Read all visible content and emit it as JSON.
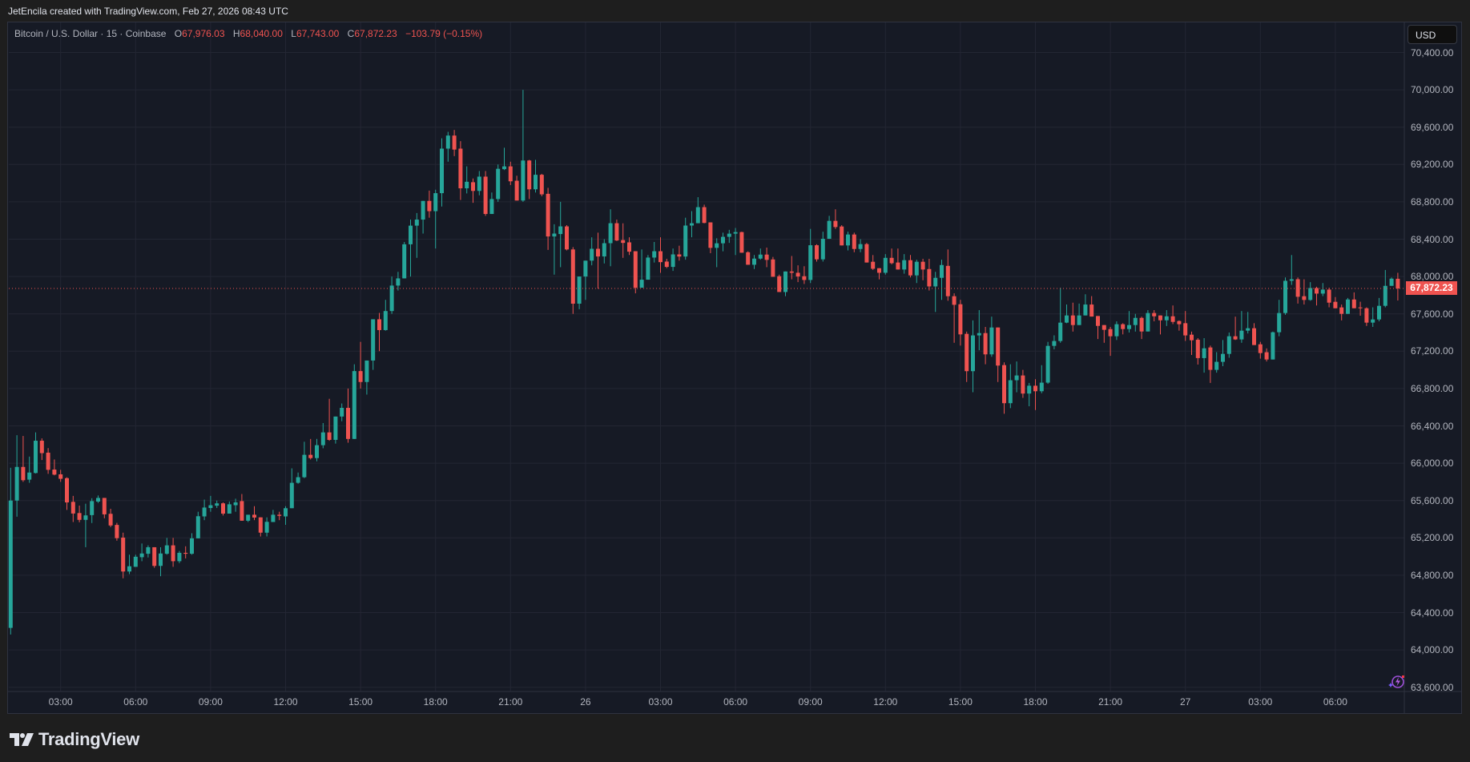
{
  "header": {
    "attribution": "JetEncila created with TradingView.com, Feb 27, 2026 08:43 UTC"
  },
  "legend": {
    "symbol": "Bitcoin / U.S. Dollar · 15 · Coinbase",
    "open_label": "O",
    "open": "67,976.03",
    "high_label": "H",
    "high": "68,040.00",
    "low_label": "L",
    "low": "67,743.00",
    "close_label": "C",
    "close": "67,872.23",
    "change": "−103.79 (−0.15%)"
  },
  "price_axis": {
    "currency_button": "USD",
    "last_price": "67,872.23",
    "labels": [
      "70,400.00",
      "70,000.00",
      "69,600.00",
      "69,200.00",
      "68,800.00",
      "68,400.00",
      "68,000.00",
      "67,600.00",
      "67,200.00",
      "66,800.00",
      "66,400.00",
      "66,000.00",
      "65,600.00",
      "65,200.00",
      "64,800.00",
      "64,400.00",
      "64,000.00",
      "63,600.00"
    ]
  },
  "time_axis": {
    "labels": [
      "03:00",
      "06:00",
      "09:00",
      "12:00",
      "15:00",
      "18:00",
      "21:00",
      "26",
      "03:00",
      "06:00",
      "09:00",
      "12:00",
      "15:00",
      "18:00",
      "21:00",
      "27",
      "03:00",
      "06:00"
    ]
  },
  "footer": {
    "logo_text": "TradingView"
  },
  "icons": {
    "logo": "tradingview-logo-icon",
    "corner": "lightning-sparkle-icon"
  },
  "colors": {
    "up": "#26a69a",
    "down": "#ef5350",
    "background": "#161a25",
    "grid": "#232633",
    "last_price": "#ef5350",
    "corner_icon": "#9c4fd6"
  },
  "chart_data": {
    "type": "candlestick",
    "title": "Bitcoin / U.S. Dollar · 15 · Coinbase",
    "interval": "15",
    "ylim": [
      63600,
      70400
    ],
    "y_ticks": [
      70400,
      70000,
      69600,
      69200,
      68800,
      68400,
      68000,
      67600,
      67200,
      66800,
      66400,
      66000,
      65600,
      65200,
      64800,
      64400,
      64000,
      63600
    ],
    "x_tick_labels": [
      "03:00",
      "06:00",
      "09:00",
      "12:00",
      "15:00",
      "18:00",
      "21:00",
      "26",
      "03:00",
      "06:00",
      "09:00",
      "12:00",
      "15:00",
      "18:00",
      "21:00",
      "27",
      "03:00",
      "06:00"
    ],
    "grid": true,
    "last_price": 67872.23,
    "ohlc": [
      [
        64236,
        65952,
        64165,
        65600
      ],
      [
        65600,
        66300,
        65427,
        65960
      ],
      [
        65960,
        66292,
        65800,
        65818
      ],
      [
        65824,
        66071,
        65790,
        65900
      ],
      [
        65895,
        66330,
        65890,
        66241
      ],
      [
        66241,
        66266,
        66034,
        66108
      ],
      [
        66113,
        66162,
        65886,
        65929
      ],
      [
        65932,
        66040,
        65870,
        65878
      ],
      [
        65881,
        65929,
        65800,
        65833
      ],
      [
        65840,
        65850,
        65500,
        65580
      ],
      [
        65586,
        65650,
        65370,
        65461
      ],
      [
        65466,
        65546,
        65367,
        65393
      ],
      [
        65393,
        65566,
        65100,
        65441
      ],
      [
        65444,
        65625,
        65359,
        65594
      ],
      [
        65589,
        65654,
        65575,
        65628
      ],
      [
        65628,
        65628,
        65410,
        65452
      ],
      [
        65458,
        65512,
        65315,
        65333
      ],
      [
        65339,
        65361,
        65170,
        65197
      ],
      [
        65203,
        65256,
        64767,
        64840
      ],
      [
        64840,
        65020,
        64812,
        64896
      ],
      [
        64890,
        65020,
        64890,
        64998
      ],
      [
        64993,
        65140,
        64950,
        65033
      ],
      [
        65030,
        65120,
        64990,
        65100
      ],
      [
        65100,
        65100,
        64880,
        64900
      ],
      [
        64900,
        65100,
        64790,
        65033
      ],
      [
        65030,
        65200,
        65020,
        65120
      ],
      [
        65120,
        65200,
        64890,
        64950
      ],
      [
        64950,
        65060,
        64930,
        65040
      ],
      [
        65040,
        65110,
        64980,
        65030
      ],
      [
        65030,
        65250,
        65020,
        65195
      ],
      [
        65195,
        65480,
        65195,
        65432
      ],
      [
        65430,
        65610,
        65390,
        65525
      ],
      [
        65520,
        65650,
        65480,
        65550
      ],
      [
        65545,
        65600,
        65520,
        65570
      ],
      [
        65570,
        65580,
        65440,
        65460
      ],
      [
        65460,
        65590,
        65460,
        65560
      ],
      [
        65550,
        65620,
        65480,
        65580
      ],
      [
        65594,
        65670,
        65384,
        65384
      ],
      [
        65384,
        65448,
        65370,
        65448
      ],
      [
        65448,
        65540,
        65390,
        65418
      ],
      [
        65420,
        65420,
        65215,
        65256
      ],
      [
        65256,
        65420,
        65215,
        65372
      ],
      [
        65370,
        65500,
        65370,
        65448
      ],
      [
        65448,
        65480,
        65390,
        65436
      ],
      [
        65430,
        65540,
        65340,
        65518
      ],
      [
        65518,
        65945,
        65518,
        65790
      ],
      [
        65790,
        65900,
        65780,
        65850
      ],
      [
        65850,
        66230,
        65840,
        66090
      ],
      [
        66090,
        66260,
        66040,
        66055
      ],
      [
        66055,
        66260,
        66020,
        66193
      ],
      [
        66193,
        66430,
        66160,
        66330
      ],
      [
        66330,
        66690,
        66240,
        66250
      ],
      [
        66250,
        66500,
        66210,
        66500
      ],
      [
        66500,
        66640,
        66450,
        66593
      ],
      [
        66593,
        66800,
        66220,
        66260
      ],
      [
        66260,
        67060,
        66260,
        66987
      ],
      [
        66987,
        67300,
        66800,
        66870
      ],
      [
        66870,
        67100,
        66735,
        67100
      ],
      [
        67100,
        67542,
        67000,
        67542
      ],
      [
        67542,
        67610,
        67200,
        67426
      ],
      [
        67426,
        67750,
        67420,
        67630
      ],
      [
        67630,
        68000,
        67600,
        67903
      ],
      [
        67903,
        68050,
        67850,
        67980
      ],
      [
        67980,
        68370,
        67980,
        68345
      ],
      [
        68345,
        68610,
        68000,
        68545
      ],
      [
        68545,
        68680,
        68200,
        68610
      ],
      [
        68610,
        68810,
        68460,
        68810
      ],
      [
        68810,
        68920,
        68630,
        68700
      ],
      [
        68700,
        68930,
        68300,
        68893
      ],
      [
        68893,
        69480,
        68750,
        69370
      ],
      [
        69370,
        69550,
        69230,
        69510
      ],
      [
        69510,
        69570,
        69290,
        69360
      ],
      [
        69370,
        69450,
        68820,
        68945
      ],
      [
        68945,
        69180,
        68890,
        69015
      ],
      [
        69010,
        69050,
        68790,
        68917
      ],
      [
        68917,
        69130,
        68870,
        69070
      ],
      [
        69070,
        69130,
        68650,
        68670
      ],
      [
        68670,
        68900,
        68670,
        68830
      ],
      [
        68830,
        69200,
        68800,
        69154
      ],
      [
        69150,
        69380,
        69140,
        69180
      ],
      [
        69180,
        69230,
        68980,
        69020
      ],
      [
        69026,
        69080,
        68814,
        68814
      ],
      [
        68814,
        70000,
        68800,
        69243
      ],
      [
        69243,
        69250,
        68830,
        68934
      ],
      [
        68934,
        69250,
        68900,
        69090
      ],
      [
        69090,
        69100,
        68860,
        68880
      ],
      [
        68886,
        68950,
        68285,
        68429
      ],
      [
        68429,
        68560,
        68020,
        68460
      ],
      [
        68455,
        68800,
        68100,
        68537
      ],
      [
        68537,
        68550,
        68280,
        68290
      ],
      [
        68290,
        68315,
        67600,
        67709
      ],
      [
        67709,
        68000,
        67650,
        68000
      ],
      [
        68000,
        68170,
        67750,
        68170
      ],
      [
        68170,
        68420,
        68120,
        68297
      ],
      [
        68297,
        68470,
        67870,
        68215
      ],
      [
        68215,
        68400,
        68140,
        68357
      ],
      [
        68357,
        68720,
        68110,
        68571
      ],
      [
        68571,
        68610,
        68380,
        68386
      ],
      [
        68390,
        68570,
        68200,
        68360
      ],
      [
        68366,
        68420,
        68230,
        68266
      ],
      [
        68271,
        68271,
        67820,
        67880
      ],
      [
        67880,
        68290,
        67880,
        67966
      ],
      [
        67966,
        68230,
        67966,
        68203
      ],
      [
        68203,
        68370,
        68150,
        68271
      ],
      [
        68271,
        68420,
        68040,
        68154
      ],
      [
        68160,
        68190,
        68090,
        68103
      ],
      [
        68103,
        68300,
        68060,
        68237
      ],
      [
        68237,
        68330,
        68170,
        68214
      ],
      [
        68214,
        68630,
        68180,
        68546
      ],
      [
        68546,
        68700,
        68420,
        68571
      ],
      [
        68571,
        68850,
        68571,
        68743
      ],
      [
        68743,
        68770,
        68570,
        68574
      ],
      [
        68580,
        68580,
        68250,
        68307
      ],
      [
        68307,
        68410,
        68100,
        68356
      ],
      [
        68356,
        68470,
        68270,
        68425
      ],
      [
        68425,
        68500,
        68360,
        68459
      ],
      [
        68459,
        68520,
        68230,
        68476
      ],
      [
        68476,
        68480,
        68255,
        68255
      ],
      [
        68260,
        68270,
        68126,
        68126
      ],
      [
        68126,
        68230,
        68080,
        68192
      ],
      [
        68192,
        68300,
        68180,
        68235
      ],
      [
        68235,
        68310,
        68100,
        68178
      ],
      [
        68183,
        68210,
        67997,
        67997
      ],
      [
        68003,
        68020,
        67834,
        67834
      ],
      [
        67834,
        68054,
        67790,
        68054
      ],
      [
        68054,
        68220,
        67970,
        68040
      ],
      [
        68040,
        68120,
        67940,
        68000
      ],
      [
        68003,
        68110,
        67920,
        67963
      ],
      [
        67963,
        68510,
        67930,
        68335
      ],
      [
        68335,
        68345,
        68160,
        68184
      ],
      [
        68184,
        68480,
        68160,
        68404
      ],
      [
        68404,
        68650,
        68404,
        68596
      ],
      [
        68596,
        68720,
        68510,
        68530
      ],
      [
        68536,
        68550,
        68333,
        68333
      ],
      [
        68333,
        68480,
        68280,
        68450
      ],
      [
        68450,
        68470,
        68260,
        68295
      ],
      [
        68295,
        68400,
        68260,
        68347
      ],
      [
        68347,
        68360,
        68150,
        68150
      ],
      [
        68158,
        68230,
        68070,
        68083
      ],
      [
        68089,
        68090,
        67970,
        68040
      ],
      [
        68040,
        68240,
        68020,
        68200
      ],
      [
        68200,
        68300,
        68130,
        68143
      ],
      [
        68150,
        68300,
        68075,
        68075
      ],
      [
        68075,
        68240,
        68030,
        68175
      ],
      [
        68175,
        68230,
        67990,
        68012
      ],
      [
        68012,
        68180,
        67930,
        68158
      ],
      [
        68158,
        68190,
        67960,
        68075
      ],
      [
        68080,
        68190,
        67850,
        67894
      ],
      [
        67894,
        68050,
        67620,
        67986
      ],
      [
        67986,
        68180,
        67750,
        68123
      ],
      [
        68114,
        68290,
        67740,
        67789
      ],
      [
        67789,
        67820,
        67290,
        67697
      ],
      [
        67703,
        67750,
        67260,
        67380
      ],
      [
        67386,
        67410,
        66870,
        66986
      ],
      [
        66986,
        67530,
        66760,
        67369
      ],
      [
        67369,
        67640,
        67210,
        67394
      ],
      [
        67394,
        67460,
        67060,
        67166
      ],
      [
        67166,
        67570,
        67140,
        67454
      ],
      [
        67454,
        67454,
        66870,
        67046
      ],
      [
        67051,
        67080,
        66530,
        66643
      ],
      [
        66643,
        67060,
        66590,
        66889
      ],
      [
        66889,
        67090,
        66760,
        66940
      ],
      [
        66940,
        67000,
        66700,
        66746
      ],
      [
        66746,
        66860,
        66610,
        66830
      ],
      [
        66830,
        66900,
        66570,
        66771
      ],
      [
        66771,
        67050,
        66750,
        66863
      ],
      [
        66863,
        67300,
        66850,
        67257
      ],
      [
        67257,
        67370,
        67220,
        67309
      ],
      [
        67309,
        67880,
        67290,
        67506
      ],
      [
        67506,
        67700,
        67500,
        67583
      ],
      [
        67583,
        67720,
        67410,
        67480
      ],
      [
        67480,
        67710,
        67480,
        67583
      ],
      [
        67583,
        67810,
        67583,
        67700
      ],
      [
        67700,
        67790,
        67571,
        67571
      ],
      [
        67577,
        67577,
        67330,
        67471
      ],
      [
        67480,
        67480,
        67290,
        67429
      ],
      [
        67437,
        67460,
        67150,
        67360
      ],
      [
        67360,
        67520,
        67320,
        67489
      ],
      [
        67489,
        67500,
        67380,
        67437
      ],
      [
        67437,
        67630,
        67400,
        67480
      ],
      [
        67480,
        67600,
        67410,
        67557
      ],
      [
        67557,
        67570,
        67330,
        67411
      ],
      [
        67411,
        67640,
        67411,
        67609
      ],
      [
        67609,
        67640,
        67520,
        67574
      ],
      [
        67583,
        67583,
        67380,
        67531
      ],
      [
        67531,
        67640,
        67470,
        67574
      ],
      [
        67574,
        67690,
        67490,
        67514
      ],
      [
        67523,
        67530,
        67420,
        67489
      ],
      [
        67500,
        67630,
        67310,
        67369
      ],
      [
        67377,
        67410,
        67160,
        67317
      ],
      [
        67323,
        67340,
        67057,
        67126
      ],
      [
        67126,
        67340,
        66970,
        67231
      ],
      [
        67240,
        67260,
        66860,
        67000
      ],
      [
        67000,
        67190,
        66970,
        67086
      ],
      [
        67086,
        67320,
        67040,
        67171
      ],
      [
        67171,
        67400,
        67130,
        67360
      ],
      [
        67360,
        67570,
        67320,
        67326
      ],
      [
        67326,
        67630,
        67290,
        67420
      ],
      [
        67420,
        67620,
        67390,
        67446
      ],
      [
        67446,
        67500,
        67266,
        67266
      ],
      [
        67274,
        67300,
        67120,
        67180
      ],
      [
        67189,
        67230,
        67090,
        67111
      ],
      [
        67111,
        67410,
        67111,
        67403
      ],
      [
        67403,
        67750,
        67360,
        67609
      ],
      [
        67609,
        67990,
        67590,
        67954
      ],
      [
        67954,
        68230,
        67910,
        67971
      ],
      [
        67971,
        67990,
        67710,
        67783
      ],
      [
        67789,
        67970,
        67700,
        67749
      ],
      [
        67749,
        67940,
        67740,
        67877
      ],
      [
        67877,
        67890,
        67690,
        67817
      ],
      [
        67817,
        67930,
        67790,
        67860
      ],
      [
        67860,
        67880,
        67670,
        67720
      ],
      [
        67729,
        67780,
        67660,
        67660
      ],
      [
        67669,
        67700,
        67530,
        67600
      ],
      [
        67600,
        67770,
        67600,
        67754
      ],
      [
        67754,
        67830,
        67660,
        67660
      ],
      [
        67669,
        67730,
        67580,
        67660
      ],
      [
        67660,
        67670,
        67470,
        67506
      ],
      [
        67506,
        67670,
        67460,
        67540
      ],
      [
        67540,
        67770,
        67520,
        67686
      ],
      [
        67686,
        68070,
        67670,
        67900
      ],
      [
        67900,
        67990,
        67900,
        67977
      ],
      [
        67976.03,
        68040,
        67743,
        67872.23
      ]
    ]
  }
}
